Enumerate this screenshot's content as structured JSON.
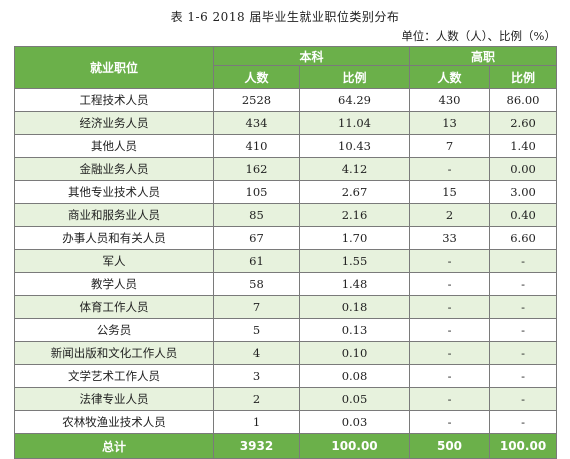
{
  "title": "表 1-6   2018 届毕业生就业职位类别分布",
  "unit_note": "单位：人数（人）、比例（%）",
  "header": {
    "job": "就业职位",
    "group_bk": "本科",
    "group_gz": "高职",
    "count": "人数",
    "ratio": "比例"
  },
  "rows": [
    {
      "job": "工程技术人员",
      "bk_count": "2528",
      "bk_ratio": "64.29",
      "gz_count": "430",
      "gz_ratio": "86.00"
    },
    {
      "job": "经济业务人员",
      "bk_count": "434",
      "bk_ratio": "11.04",
      "gz_count": "13",
      "gz_ratio": "2.60"
    },
    {
      "job": "其他人员",
      "bk_count": "410",
      "bk_ratio": "10.43",
      "gz_count": "7",
      "gz_ratio": "1.40"
    },
    {
      "job": "金融业务人员",
      "bk_count": "162",
      "bk_ratio": "4.12",
      "gz_count": "-",
      "gz_ratio": "0.00"
    },
    {
      "job": "其他专业技术人员",
      "bk_count": "105",
      "bk_ratio": "2.67",
      "gz_count": "15",
      "gz_ratio": "3.00"
    },
    {
      "job": "商业和服务业人员",
      "bk_count": "85",
      "bk_ratio": "2.16",
      "gz_count": "2",
      "gz_ratio": "0.40"
    },
    {
      "job": "办事人员和有关人员",
      "bk_count": "67",
      "bk_ratio": "1.70",
      "gz_count": "33",
      "gz_ratio": "6.60"
    },
    {
      "job": "军人",
      "bk_count": "61",
      "bk_ratio": "1.55",
      "gz_count": "-",
      "gz_ratio": "-"
    },
    {
      "job": "教学人员",
      "bk_count": "58",
      "bk_ratio": "1.48",
      "gz_count": "-",
      "gz_ratio": "-"
    },
    {
      "job": "体育工作人员",
      "bk_count": "7",
      "bk_ratio": "0.18",
      "gz_count": "-",
      "gz_ratio": "-"
    },
    {
      "job": "公务员",
      "bk_count": "5",
      "bk_ratio": "0.13",
      "gz_count": "-",
      "gz_ratio": "-"
    },
    {
      "job": "新闻出版和文化工作人员",
      "bk_count": "4",
      "bk_ratio": "0.10",
      "gz_count": "-",
      "gz_ratio": "-"
    },
    {
      "job": "文学艺术工作人员",
      "bk_count": "3",
      "bk_ratio": "0.08",
      "gz_count": "-",
      "gz_ratio": "-"
    },
    {
      "job": "法律专业人员",
      "bk_count": "2",
      "bk_ratio": "0.05",
      "gz_count": "-",
      "gz_ratio": "-"
    },
    {
      "job": "农林牧渔业技术人员",
      "bk_count": "1",
      "bk_ratio": "0.03",
      "gz_count": "-",
      "gz_ratio": "-"
    }
  ],
  "total": {
    "job": "总计",
    "bk_count": "3932",
    "bk_ratio": "100.00",
    "gz_count": "500",
    "gz_ratio": "100.00"
  }
}
